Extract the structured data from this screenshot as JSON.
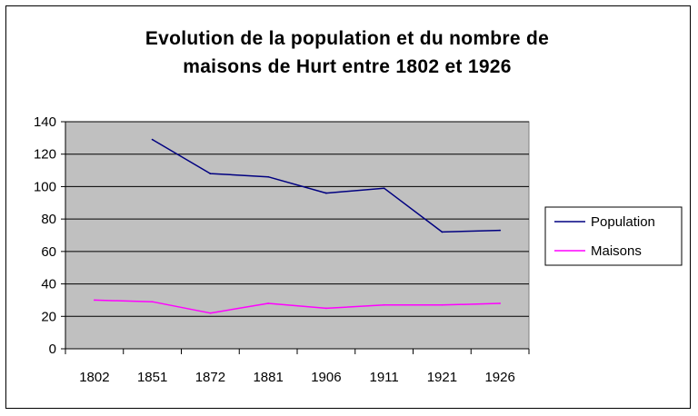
{
  "chart_data": {
    "type": "line",
    "title_lines": [
      "Evolution de la population et du nombre de",
      "maisons de Hurt entre 1802 et 1926"
    ],
    "xlabel": "",
    "ylabel": "",
    "categories": [
      "1802",
      "1851",
      "1872",
      "1881",
      "1906",
      "1911",
      "1921",
      "1926"
    ],
    "y_ticks": [
      "0",
      "20",
      "40",
      "60",
      "80",
      "100",
      "120",
      "140"
    ],
    "ylim": [
      0,
      140
    ],
    "grid": true,
    "legend_position": "right",
    "plot_background": "#c0c0c0",
    "series": [
      {
        "name": "Population",
        "color": "#000080",
        "values": [
          null,
          129,
          108,
          106,
          96,
          99,
          72,
          73
        ]
      },
      {
        "name": "Maisons",
        "color": "#ff00ff",
        "values": [
          30,
          29,
          22,
          28,
          25,
          27,
          27,
          28
        ]
      }
    ]
  }
}
